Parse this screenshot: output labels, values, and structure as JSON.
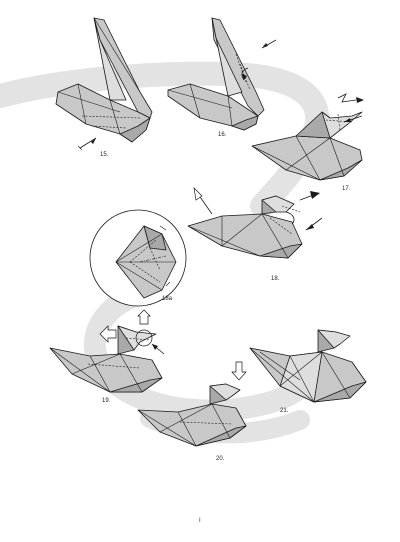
{
  "steps": [
    {
      "label": "15."
    },
    {
      "label": "16."
    },
    {
      "label": "17."
    },
    {
      "label": "18."
    },
    {
      "label": "18a"
    },
    {
      "label": "19."
    },
    {
      "label": "20."
    },
    {
      "label": "21."
    }
  ],
  "page_number": "I",
  "colors": {
    "paper": "#c8c8c8",
    "paper_dark": "#a9a9a9",
    "swoosh": "#e3e3e3",
    "line": "#1a1a1a"
  }
}
